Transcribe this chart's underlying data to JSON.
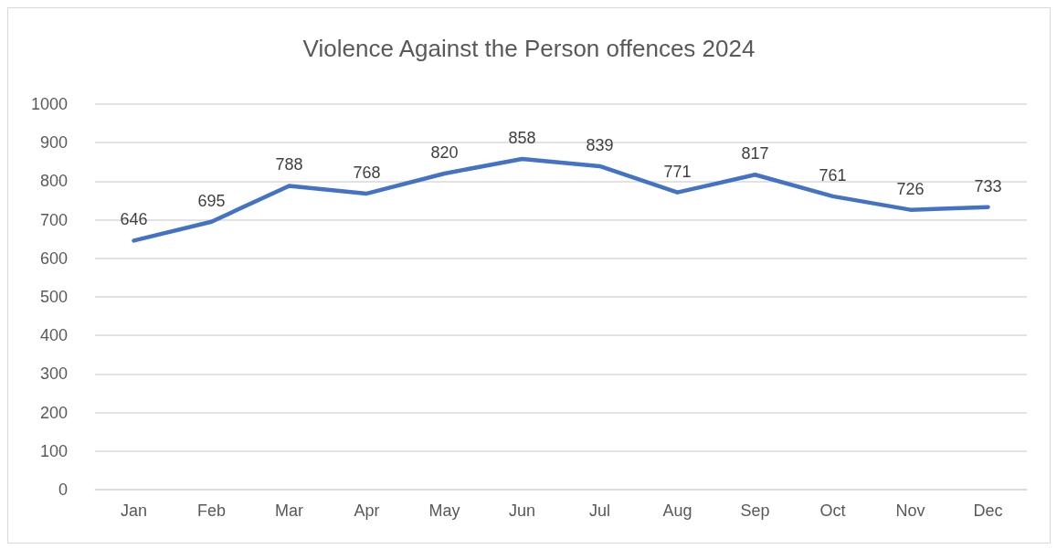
{
  "chart_data": {
    "type": "line",
    "title": "Violence Against the Person offences 2024",
    "categories": [
      "Jan",
      "Feb",
      "Mar",
      "Apr",
      "May",
      "Jun",
      "Jul",
      "Aug",
      "Sep",
      "Oct",
      "Nov",
      "Dec"
    ],
    "series": [
      {
        "color": "#4472c4",
        "values": [
          646,
          695,
          788,
          768,
          820,
          858,
          839,
          771,
          817,
          761,
          726,
          733
        ]
      }
    ],
    "ylim": [
      0,
      1000
    ],
    "yticks": [
      0,
      100,
      200,
      300,
      400,
      500,
      600,
      700,
      800,
      900,
      1000
    ],
    "grid": "y",
    "data_labels": true,
    "marker": "none",
    "line_style": "solid"
  }
}
